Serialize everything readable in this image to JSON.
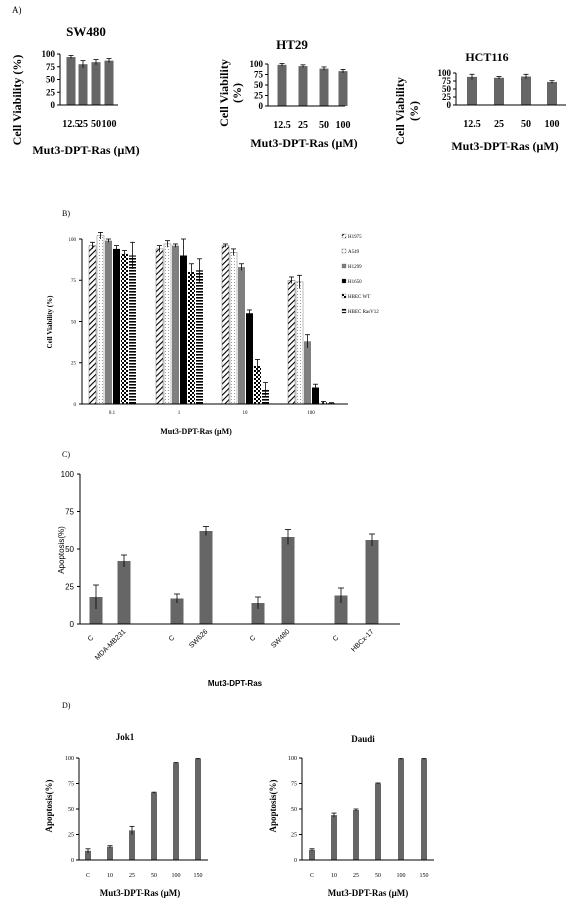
{
  "colors": {
    "bar": "#666666",
    "axis": "#000000",
    "H1975_fill": "#ffffff",
    "A549_fill": "#ffffff",
    "H1299_fill": "#7f7f7f",
    "H1650_fill": "#000000",
    "HBEC_WT_fill": "#000000",
    "HBEC_RasV12_fill": "#000000"
  },
  "chart_data": [
    {
      "panel_label": "A)",
      "type": "bar",
      "title": "SW480",
      "xlabel": "Mut3-DPT-Ras (μM)",
      "ylabel": "Cell Viability (%)",
      "categories": [
        "12.5",
        "25",
        "50",
        "100"
      ],
      "values": [
        94,
        80,
        84,
        87
      ],
      "errors": [
        3,
        7,
        5,
        4
      ],
      "ylim": [
        0,
        100
      ],
      "yticks": [
        "0",
        "25",
        "50",
        "75",
        "100"
      ]
    },
    {
      "type": "bar",
      "title": "HT29",
      "xlabel": "Mut3-DPT-Ras (μM)",
      "ylabel_lines": [
        "Cell Viability",
        "(%)"
      ],
      "categories": [
        "12.5",
        "25",
        "50",
        "100"
      ],
      "values": [
        98,
        95,
        89,
        83
      ],
      "errors": [
        3,
        3,
        4,
        4
      ],
      "ylim": [
        0,
        100
      ],
      "yticks": [
        "0",
        "25",
        "50",
        "75",
        "100"
      ]
    },
    {
      "type": "bar",
      "title": "HCT116",
      "xlabel": "Mut3-DPT-Ras (μM)",
      "ylabel_lines": [
        "Cell Viability",
        "(%)"
      ],
      "categories": [
        "12.5",
        "25",
        "50",
        "100"
      ],
      "values": [
        88,
        85,
        89,
        72
      ],
      "errors": [
        8,
        4,
        7,
        4
      ],
      "ylim": [
        0,
        100
      ],
      "yticks": [
        "0",
        "25",
        "50",
        "75",
        "100"
      ]
    },
    {
      "panel_label": "B)",
      "type": "bar",
      "xlabel": "Mut3-DPT-Ras (μM)",
      "ylabel": "Cell Viability (%)",
      "categories": [
        "0.1",
        "1",
        "10",
        "100"
      ],
      "ylim": [
        0,
        100
      ],
      "yticks": [
        "0",
        "25",
        "50",
        "75",
        "100"
      ],
      "legend": "right",
      "series": [
        {
          "name": "H1975",
          "pattern": "diagonal",
          "values": [
            96,
            94,
            96,
            75
          ],
          "errors": [
            2,
            2,
            1,
            2
          ]
        },
        {
          "name": "A549",
          "pattern": "light",
          "values": [
            102,
            97,
            92,
            74
          ],
          "errors": [
            2,
            2,
            2,
            4
          ]
        },
        {
          "name": "H1299",
          "pattern": "gray",
          "values": [
            99,
            96,
            83,
            38
          ],
          "errors": [
            1,
            1,
            2,
            4
          ]
        },
        {
          "name": "H1650",
          "pattern": "black",
          "values": [
            94,
            90,
            55,
            10
          ],
          "errors": [
            2,
            10,
            2,
            2
          ]
        },
        {
          "name": "HBEC WT",
          "pattern": "checker",
          "values": [
            91,
            80,
            23,
            1
          ],
          "errors": [
            2,
            5,
            4,
            0.5
          ]
        },
        {
          "name": "HBEC RasV12",
          "pattern": "hstripe",
          "values": [
            90,
            81,
            9,
            0.5
          ],
          "errors": [
            8,
            7,
            4,
            0.3
          ]
        }
      ]
    },
    {
      "panel_label": "C)",
      "type": "bar",
      "xlabel": "Mut3-DPT-Ras",
      "ylabel": "Apoptosis(%)",
      "groups": [
        "MDA-MB231",
        "SW626",
        "SW480",
        "HBCx-17"
      ],
      "control_label": "C",
      "control_values": [
        18,
        17,
        14,
        19
      ],
      "control_errors": [
        8,
        3,
        4,
        5
      ],
      "treated_values": [
        42,
        62,
        58,
        56
      ],
      "treated_errors": [
        4,
        3,
        5,
        4
      ],
      "ylim": [
        0,
        100
      ],
      "yticks": [
        "0",
        "25",
        "50",
        "75",
        "100"
      ]
    },
    {
      "panel_label": "D)",
      "type": "bar",
      "title": "Jok1",
      "xlabel": "Mut3-DPT-Ras (μM)",
      "ylabel": "Apoptosis(%)",
      "categories": [
        "C",
        "10",
        "25",
        "50",
        "100",
        "150"
      ],
      "values": [
        9,
        13,
        29,
        66,
        95,
        99
      ],
      "errors": [
        2,
        1,
        4,
        0.5,
        0.5,
        0.5
      ],
      "ylim": [
        0,
        100
      ],
      "yticks": [
        "0",
        "25",
        "50",
        "75",
        "100"
      ]
    },
    {
      "type": "bar",
      "title": "Daudi",
      "xlabel": "Mut3-DPT-Ras (μM)",
      "ylabel": "Apoptosis(%)",
      "categories": [
        "C",
        "10",
        "25",
        "50",
        "100",
        "150"
      ],
      "values": [
        10,
        44,
        49,
        75,
        99,
        99
      ],
      "errors": [
        1,
        2,
        1,
        0.5,
        0.5,
        0.5
      ],
      "ylim": [
        0,
        100
      ],
      "yticks": [
        "0",
        "25",
        "50",
        "75",
        "100"
      ]
    }
  ]
}
